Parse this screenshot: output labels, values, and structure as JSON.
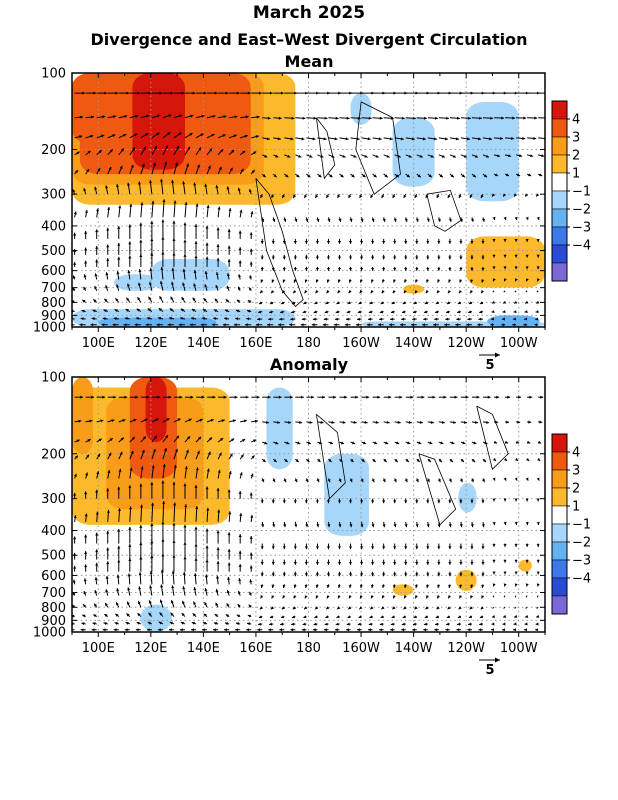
{
  "title": "March 2025",
  "subtitle": "Divergence and East–West Divergent Circulation",
  "chart_data": [
    {
      "type": "heatmap",
      "panel_title": "Mean",
      "x_ticks": [
        "100E",
        "120E",
        "140E",
        "160E",
        "180",
        "160W",
        "140W",
        "120W",
        "100W"
      ],
      "x_tick_lon": [
        100,
        120,
        140,
        160,
        180,
        200,
        220,
        240,
        260
      ],
      "xlim_lon": [
        90,
        270
      ],
      "y_ticks": [
        "100",
        "200",
        "300",
        "400",
        "500",
        "600",
        "700",
        "800",
        "900",
        "1000"
      ],
      "y_tick_hpa": [
        100,
        200,
        300,
        400,
        500,
        600,
        700,
        800,
        900,
        1000
      ],
      "ylim_hpa": [
        100,
        1000
      ],
      "y_scale": "log",
      "vector_ref_label": "5",
      "shaded_regions": [
        {
          "lon": [
            90,
            175
          ],
          "p": [
            100,
            330
          ],
          "level": 1
        },
        {
          "lon": [
            90,
            163
          ],
          "p": [
            100,
            275
          ],
          "level": 2
        },
        {
          "lon": [
            93,
            158
          ],
          "p": [
            100,
            250
          ],
          "level": 3
        },
        {
          "lon": [
            113,
            133
          ],
          "p": [
            100,
            240
          ],
          "level": 4
        },
        {
          "lon": [
            90,
            108
          ],
          "p": [
            100,
            190
          ],
          "level": 3
        },
        {
          "lon": [
            138,
            148
          ],
          "p": [
            100,
            150
          ],
          "level": 3
        },
        {
          "lon": [
            163,
            170
          ],
          "p": [
            100,
            160
          ],
          "level": 1
        },
        {
          "lon": [
            212,
            228
          ],
          "p": [
            150,
            280
          ],
          "level": -1
        },
        {
          "lon": [
            240,
            260
          ],
          "p": [
            130,
            320
          ],
          "level": -1
        },
        {
          "lon": [
            196,
            204
          ],
          "p": [
            120,
            160
          ],
          "level": -1
        },
        {
          "lon": [
            120,
            150
          ],
          "p": [
            540,
            720
          ],
          "level": -1
        },
        {
          "lon": [
            106,
            123
          ],
          "p": [
            620,
            720
          ],
          "level": -1
        },
        {
          "lon": [
            90,
            175
          ],
          "p": [
            850,
            1000
          ],
          "level": -1
        },
        {
          "lon": [
            100,
            145
          ],
          "p": [
            920,
            1000
          ],
          "level": -2
        },
        {
          "lon": [
            200,
            270
          ],
          "p": [
            950,
            1000
          ],
          "level": -1
        },
        {
          "lon": [
            248,
            268
          ],
          "p": [
            900,
            1000
          ],
          "level": -2
        },
        {
          "lon": [
            240,
            270
          ],
          "p": [
            440,
            700
          ],
          "level": 1
        },
        {
          "lon": [
            216,
            224
          ],
          "p": [
            680,
            740
          ],
          "level": 1
        }
      ],
      "vector_levels_hpa": [
        120,
        150,
        180,
        210,
        250,
        300,
        370,
        450,
        520,
        580,
        650,
        720,
        800,
        870,
        930,
        980
      ],
      "vectors_u": [
        2.5,
        2.0,
        1.8,
        1.2,
        0.8,
        -0.4,
        0.3,
        0.0,
        0.0,
        0.0,
        -0.3,
        -0.5,
        -0.8,
        -1.0,
        -1.2,
        -1.5
      ],
      "vectors_w_core": [
        0.0,
        0.4,
        0.8,
        1.4,
        1.8,
        2.2,
        2.6,
        2.8,
        2.6,
        2.2,
        1.8,
        1.4,
        0.9,
        0.5,
        0.2,
        0.0
      ],
      "contours": [
        {
          "lon": [
            225,
            234,
            238,
            232,
            228,
            225
          ],
          "p": [
            300,
            290,
            380,
            420,
            400,
            300
          ]
        },
        {
          "lon": [
            160,
            165,
            170,
            174,
            178,
            175,
            170,
            164,
            160
          ],
          "p": [
            260,
            300,
            420,
            600,
            780,
            830,
            720,
            500,
            260
          ]
        },
        {
          "lon": [
            183,
            187,
            190,
            186,
            183
          ],
          "p": [
            150,
            170,
            230,
            260,
            150
          ]
        },
        {
          "lon": [
            200,
            212,
            215,
            205,
            198,
            200
          ],
          "p": [
            130,
            150,
            250,
            300,
            200,
            130
          ]
        }
      ],
      "colorbar": {
        "labels": [
          "4",
          "3",
          "2",
          "1",
          "−1",
          "−2",
          "−3",
          "−4"
        ],
        "levels": [
          5,
          4,
          3,
          2,
          1,
          -1,
          -2,
          -3,
          -4,
          -5
        ],
        "colors": [
          "#d6150b",
          "#f05a10",
          "#f99c1a",
          "#fdb92c",
          "#ffffff",
          "#a6d6fa",
          "#65b2f3",
          "#3d78e8",
          "#2a4cd4",
          "#7c68d4"
        ]
      }
    },
    {
      "type": "heatmap",
      "panel_title": "Anomaly",
      "x_ticks": [
        "100E",
        "120E",
        "140E",
        "160E",
        "180",
        "160W",
        "140W",
        "120W",
        "100W"
      ],
      "x_tick_lon": [
        100,
        120,
        140,
        160,
        180,
        200,
        220,
        240,
        260
      ],
      "xlim_lon": [
        90,
        270
      ],
      "y_ticks": [
        "100",
        "200",
        "300",
        "400",
        "500",
        "600",
        "700",
        "800",
        "900",
        "1000"
      ],
      "y_tick_hpa": [
        100,
        200,
        300,
        400,
        500,
        600,
        700,
        800,
        900,
        1000
      ],
      "ylim_hpa": [
        100,
        1000
      ],
      "y_scale": "log",
      "vector_ref_label": "5",
      "shaded_regions": [
        {
          "lon": [
            90,
            150
          ],
          "p": [
            110,
            380
          ],
          "level": 1
        },
        {
          "lon": [
            103,
            140
          ],
          "p": [
            120,
            330
          ],
          "level": 2
        },
        {
          "lon": [
            112,
            130
          ],
          "p": [
            100,
            250
          ],
          "level": 3
        },
        {
          "lon": [
            118,
            126
          ],
          "p": [
            100,
            180
          ],
          "level": 4
        },
        {
          "lon": [
            90,
            98
          ],
          "p": [
            100,
            200
          ],
          "level": 2
        },
        {
          "lon": [
            164,
            174
          ],
          "p": [
            110,
            230
          ],
          "level": -1
        },
        {
          "lon": [
            186,
            203
          ],
          "p": [
            200,
            420
          ],
          "level": -1
        },
        {
          "lon": [
            237,
            244
          ],
          "p": [
            260,
            340
          ],
          "level": -1
        },
        {
          "lon": [
            116,
            128
          ],
          "p": [
            780,
            1000
          ],
          "level": -1
        },
        {
          "lon": [
            260,
            265
          ],
          "p": [
            520,
            580
          ],
          "level": 1
        },
        {
          "lon": [
            236,
            244
          ],
          "p": [
            570,
            690
          ],
          "level": 1
        },
        {
          "lon": [
            212,
            220
          ],
          "p": [
            650,
            720
          ],
          "level": 1
        }
      ],
      "vector_levels_hpa": [
        120,
        150,
        180,
        210,
        250,
        300,
        370,
        450,
        520,
        580,
        650,
        720,
        800,
        870,
        930,
        980
      ],
      "vectors_u": [
        2.0,
        1.6,
        1.2,
        0.8,
        0.4,
        0.0,
        0.2,
        0.0,
        0.0,
        0.0,
        -0.2,
        -0.4,
        -0.6,
        -0.8,
        -1.0,
        -1.2
      ],
      "vectors_w_core": [
        0.0,
        0.5,
        1.0,
        1.6,
        2.1,
        2.6,
        3.0,
        3.2,
        3.0,
        2.6,
        2.1,
        1.6,
        1.1,
        0.6,
        0.3,
        0.0
      ],
      "contours": [
        {
          "lon": [
            183,
            191,
            194,
            188,
            183
          ],
          "p": [
            140,
            165,
            260,
            300,
            140
          ]
        },
        {
          "lon": [
            222,
            228,
            236,
            230,
            222
          ],
          "p": [
            200,
            210,
            330,
            380,
            200
          ]
        },
        {
          "lon": [
            244,
            250,
            256,
            250,
            244
          ],
          "p": [
            130,
            140,
            200,
            230,
            130
          ]
        }
      ],
      "colorbar": {
        "labels": [
          "4",
          "3",
          "2",
          "1",
          "−1",
          "−2",
          "−3",
          "−4"
        ],
        "levels": [
          5,
          4,
          3,
          2,
          1,
          -1,
          -2,
          -3,
          -4,
          -5
        ],
        "colors": [
          "#d6150b",
          "#f05a10",
          "#f99c1a",
          "#fdb92c",
          "#ffffff",
          "#a6d6fa",
          "#65b2f3",
          "#3d78e8",
          "#2a4cd4",
          "#7c68d4"
        ]
      }
    }
  ]
}
